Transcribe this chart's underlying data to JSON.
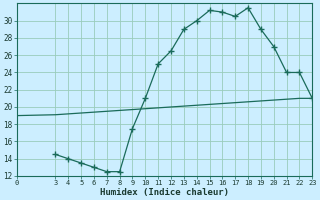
{
  "xlabel": "Humidex (Indice chaleur)",
  "bg_color": "#cceeff",
  "grid_color": "#99ccbb",
  "line_color": "#1a6b5a",
  "xlim": [
    0,
    23
  ],
  "ylim": [
    12,
    32
  ],
  "xticks": [
    0,
    3,
    4,
    5,
    6,
    7,
    8,
    9,
    10,
    11,
    12,
    13,
    14,
    15,
    16,
    17,
    18,
    19,
    20,
    21,
    22,
    23
  ],
  "yticks": [
    12,
    14,
    16,
    18,
    20,
    22,
    24,
    26,
    28,
    30
  ],
  "line1_x": [
    0,
    3,
    4,
    5,
    6,
    7,
    8,
    9,
    10,
    11,
    12,
    13,
    14,
    15,
    16,
    17,
    18,
    19,
    20,
    21,
    22,
    23
  ],
  "line1_y": [
    19.0,
    19.1,
    19.2,
    19.3,
    19.4,
    19.5,
    19.6,
    19.7,
    19.8,
    19.9,
    20.0,
    20.1,
    20.2,
    20.3,
    20.4,
    20.5,
    20.6,
    20.7,
    20.8,
    20.9,
    21.0,
    21.0
  ],
  "line2_x": [
    3,
    4,
    5,
    6,
    7,
    8,
    9,
    10,
    11,
    12,
    13,
    14,
    15,
    16,
    17,
    18,
    19,
    20,
    21,
    22,
    23
  ],
  "line2_y": [
    14.5,
    14.0,
    13.5,
    13.0,
    12.5,
    12.5,
    17.5,
    21.0,
    25.0,
    26.5,
    29.0,
    30.0,
    31.2,
    31.0,
    30.5,
    31.5,
    29.0,
    27.0,
    24.0,
    24.0,
    21.0
  ],
  "marker": "+"
}
